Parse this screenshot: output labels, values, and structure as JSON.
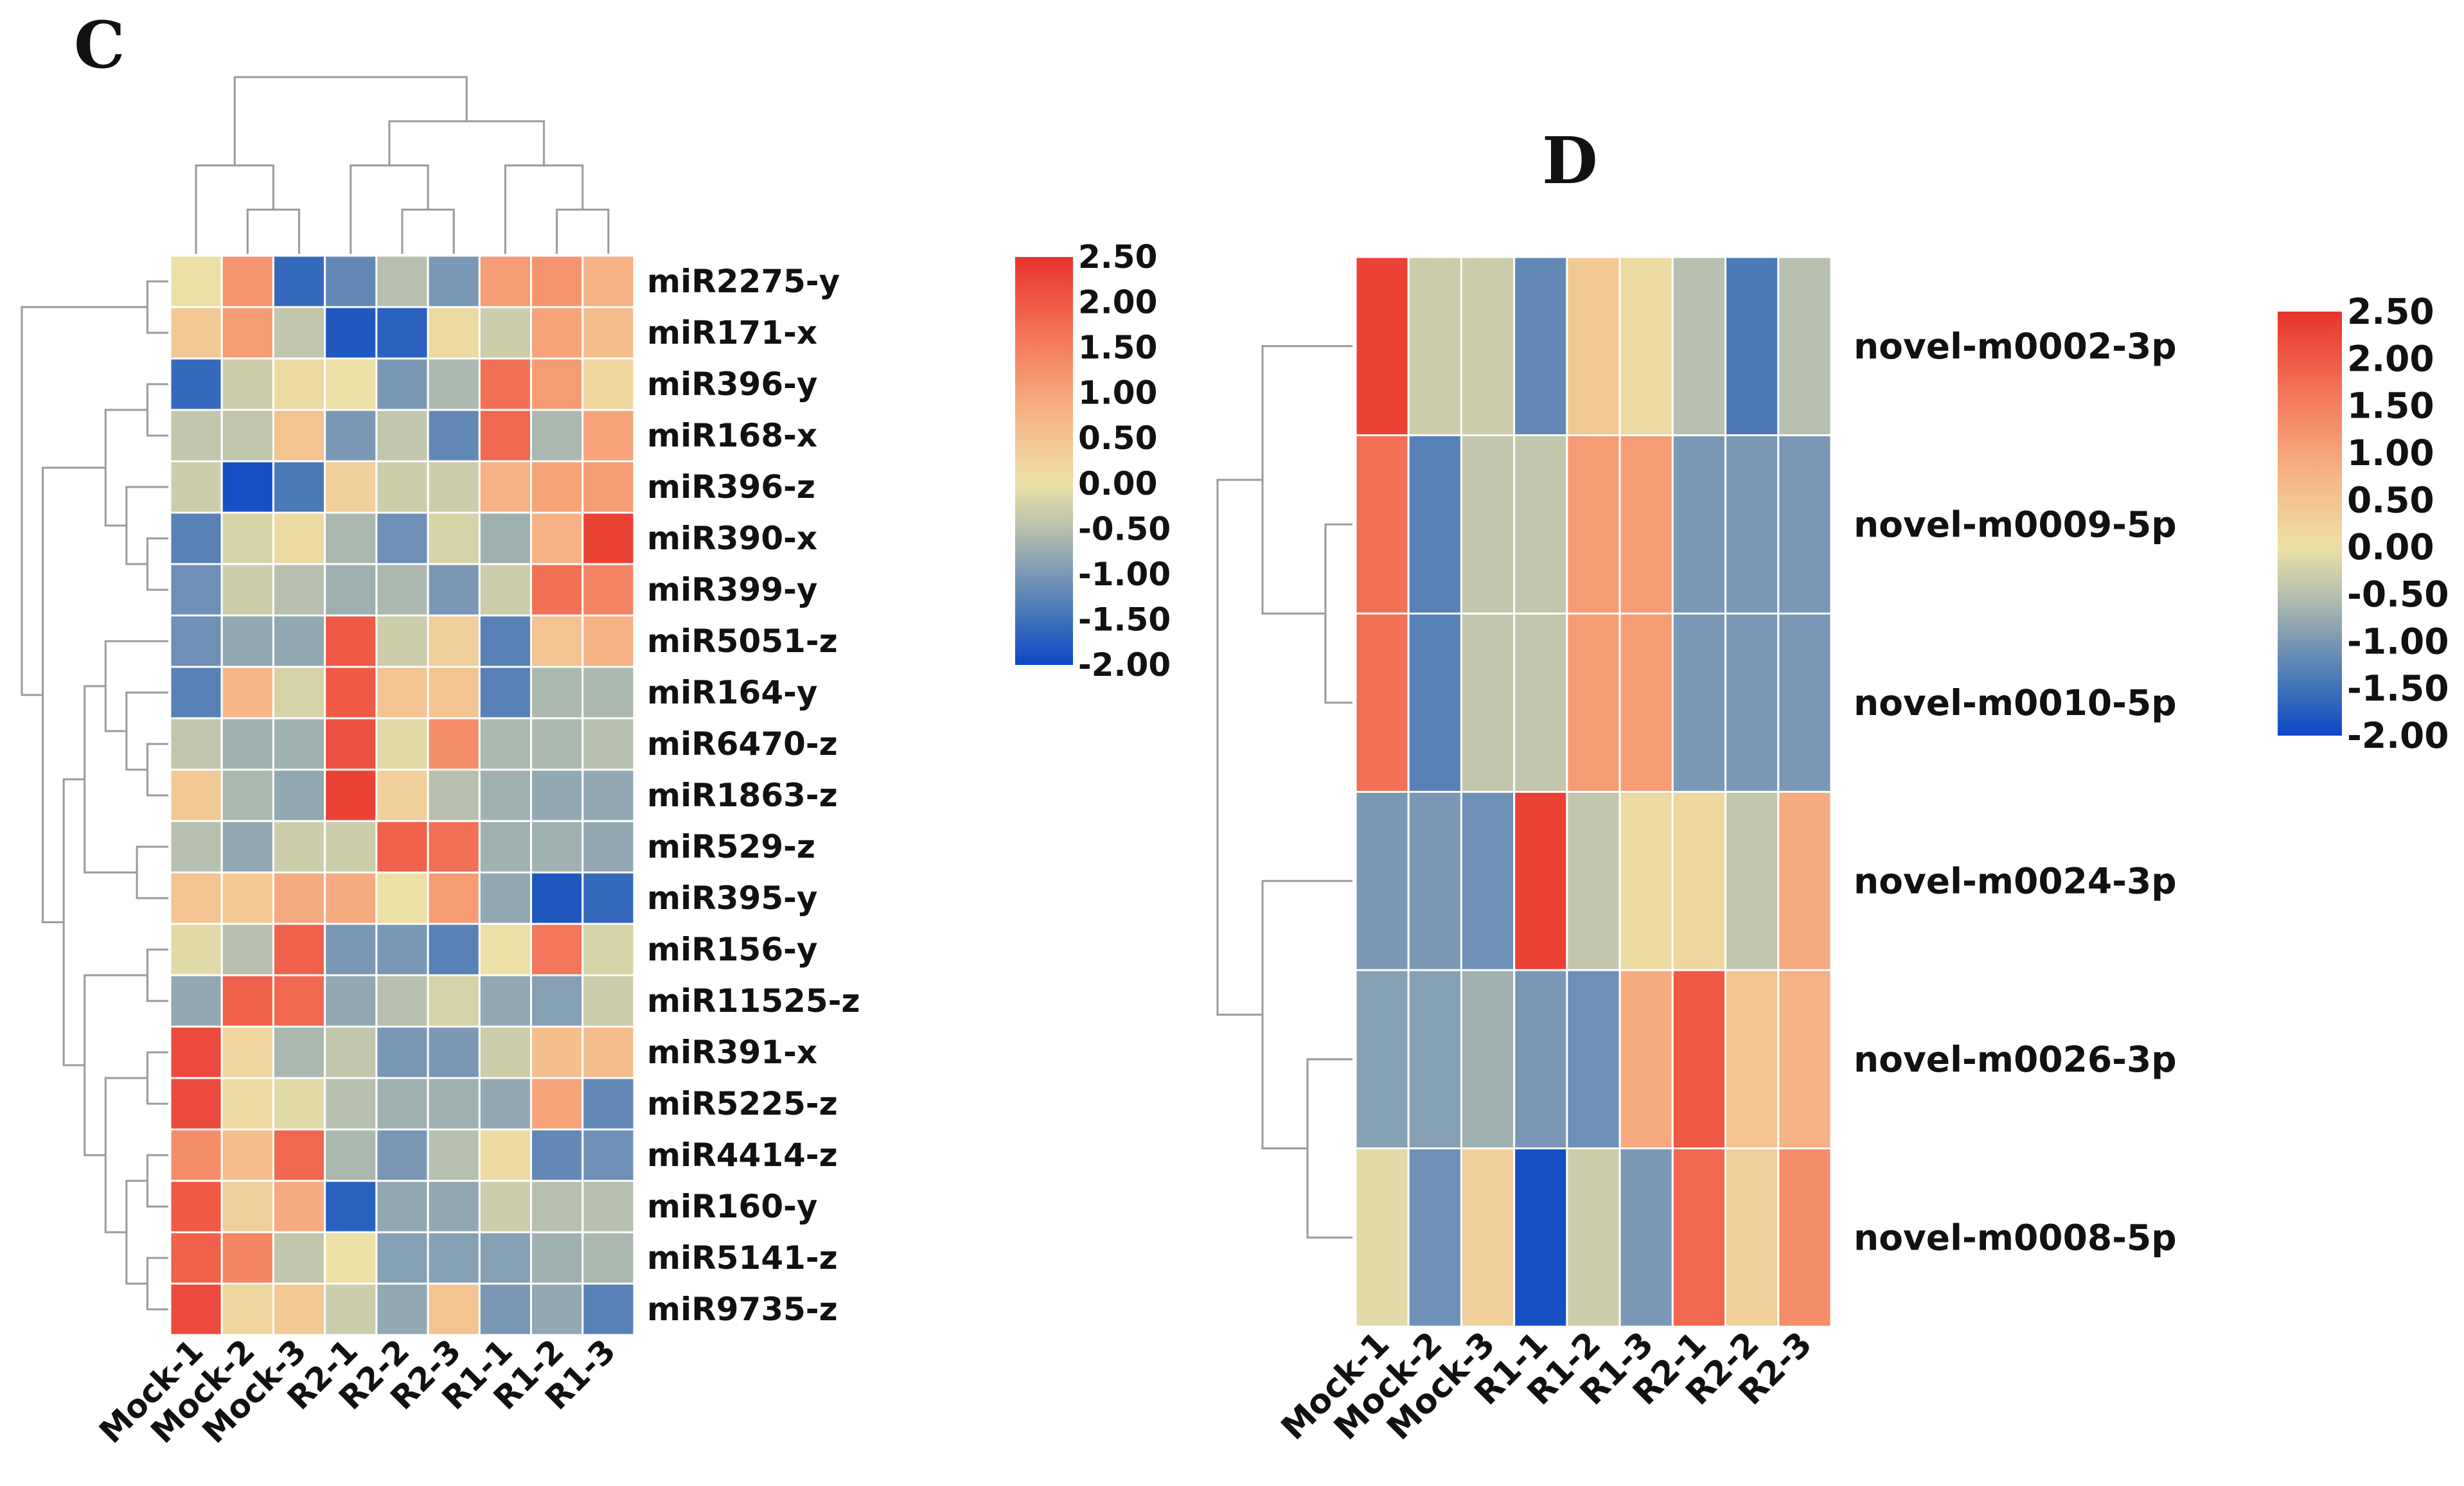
{
  "chart_data": [
    {
      "panel": "C",
      "type": "heatmap",
      "columns": [
        "Mock-1",
        "Mock-2",
        "Mock-3",
        "R2-1",
        "R2-2",
        "R2-3",
        "R1-1",
        "R1-2",
        "R1-3"
      ],
      "rows": [
        "miR2275-y",
        "miR171-x",
        "miR396-y",
        "miR168-x",
        "miR396-z",
        "miR390-x",
        "miR399-y",
        "miR5051-z",
        "miR164-y",
        "miR6470-z",
        "miR1863-z",
        "miR529-z",
        "miR395-y",
        "miR156-y",
        "miR11525-z",
        "miR391-x",
        "miR5225-z",
        "miR4414-z",
        "miR160-y",
        "miR5141-z",
        "miR9735-z"
      ],
      "values": [
        [
          0.0,
          1.2,
          -1.6,
          -1.2,
          -0.5,
          -1.0,
          1.1,
          1.2,
          0.8
        ],
        [
          0.4,
          1.1,
          -0.4,
          -1.8,
          -1.7,
          0.1,
          -0.3,
          1.0,
          0.6
        ],
        [
          -1.6,
          -0.3,
          0.1,
          0.0,
          -1.0,
          -0.6,
          1.7,
          1.1,
          0.2
        ],
        [
          -0.4,
          -0.4,
          0.5,
          -1.0,
          -0.4,
          -1.2,
          1.8,
          -0.6,
          1.0
        ],
        [
          -0.3,
          -1.9,
          -1.4,
          0.3,
          -0.3,
          -0.3,
          0.8,
          1.0,
          1.1
        ],
        [
          -1.3,
          -0.2,
          0.1,
          -0.6,
          -1.1,
          -0.2,
          -0.7,
          0.8,
          2.3
        ],
        [
          -1.1,
          -0.3,
          -0.5,
          -0.7,
          -0.6,
          -1.0,
          -0.3,
          1.7,
          1.4
        ],
        [
          -1.1,
          -0.8,
          -0.8,
          2.0,
          -0.3,
          0.3,
          -1.3,
          0.5,
          0.8
        ],
        [
          -1.3,
          0.7,
          -0.2,
          2.0,
          0.5,
          0.5,
          -1.3,
          -0.6,
          -0.6
        ],
        [
          -0.4,
          -0.7,
          -0.7,
          2.1,
          -0.1,
          1.3,
          -0.6,
          -0.6,
          -0.5
        ],
        [
          0.4,
          -0.6,
          -0.8,
          2.3,
          0.3,
          -0.5,
          -0.7,
          -0.8,
          -0.8
        ],
        [
          -0.5,
          -0.8,
          -0.3,
          -0.3,
          1.9,
          1.7,
          -0.7,
          -0.7,
          -0.8
        ],
        [
          0.5,
          0.4,
          0.9,
          0.9,
          0.0,
          1.1,
          -0.8,
          -1.8,
          -1.6
        ],
        [
          -0.1,
          -0.5,
          1.9,
          -1.0,
          -1.0,
          -1.3,
          0.0,
          1.6,
          -0.2
        ],
        [
          -0.8,
          1.9,
          1.8,
          -0.8,
          -0.5,
          -0.2,
          -0.8,
          -0.9,
          -0.3
        ],
        [
          2.2,
          0.2,
          -0.6,
          -0.4,
          -1.0,
          -1.0,
          -0.3,
          0.6,
          0.6
        ],
        [
          2.2,
          0.1,
          -0.1,
          -0.5,
          -0.7,
          -0.7,
          -0.8,
          1.0,
          -1.2
        ],
        [
          1.3,
          0.6,
          1.8,
          -0.6,
          -1.0,
          -0.5,
          0.1,
          -1.2,
          -1.1
        ],
        [
          2.0,
          0.3,
          0.9,
          -1.7,
          -0.8,
          -0.8,
          -0.3,
          -0.5,
          -0.5
        ],
        [
          1.9,
          1.4,
          -0.4,
          0.0,
          -0.9,
          -0.9,
          -0.9,
          -0.7,
          -0.6
        ],
        [
          2.2,
          0.2,
          0.4,
          -0.3,
          -0.8,
          0.5,
          -1.0,
          -0.8,
          -1.3
        ]
      ],
      "colorbar": {
        "ticks": [
          "2.50",
          "2.00",
          "1.50",
          "1.00",
          "0.50",
          "0.00",
          "-0.50",
          "-1.00",
          "-1.50",
          "-2.00"
        ],
        "range": [
          -2.0,
          2.5
        ]
      },
      "row_dendrogram": true,
      "column_dendrogram": true
    },
    {
      "panel": "D",
      "type": "heatmap",
      "columns": [
        "Mock-1",
        "Mock-2",
        "Mock-3",
        "R1-1",
        "R1-2",
        "R1-3",
        "R2-1",
        "R2-2",
        "R2-3"
      ],
      "rows": [
        "novel-m0002-3p",
        "novel-m0009-5p",
        "novel-m0010-5p",
        "novel-m0024-3p",
        "novel-m0026-3p",
        "novel-m0008-5p"
      ],
      "values": [
        [
          2.3,
          -0.3,
          -0.3,
          -1.2,
          0.4,
          0.1,
          -0.5,
          -1.4,
          -0.5
        ],
        [
          1.7,
          -1.3,
          -0.4,
          -0.4,
          1.1,
          1.1,
          -1.0,
          -1.0,
          -1.0
        ],
        [
          1.7,
          -1.3,
          -0.4,
          -0.4,
          1.1,
          1.1,
          -1.0,
          -1.0,
          -1.0
        ],
        [
          -1.0,
          -1.0,
          -1.1,
          2.3,
          -0.4,
          0.1,
          0.2,
          -0.4,
          0.9
        ],
        [
          -0.9,
          -0.9,
          -0.7,
          -1.0,
          -1.1,
          0.9,
          2.0,
          0.5,
          0.8
        ],
        [
          -0.1,
          -1.1,
          0.3,
          -1.9,
          -0.3,
          -1.0,
          1.8,
          0.3,
          1.3
        ]
      ],
      "colorbar": {
        "ticks": [
          "2.50",
          "2.00",
          "1.50",
          "1.00",
          "0.50",
          "0.00",
          "-0.50",
          "-1.00",
          "-1.50",
          "-2.00"
        ],
        "range": [
          -2.0,
          2.5
        ]
      },
      "row_dendrogram": true,
      "column_dendrogram": false
    }
  ],
  "colors": {
    "stops": [
      "#0d47c6",
      "#3f72b8",
      "#7a98b5",
      "#b7c0ae",
      "#ece0a6",
      "#f6b889",
      "#f57f60",
      "#e8332c"
    ],
    "stop_values": [
      -2.0,
      -1.5,
      -1.0,
      -0.5,
      0.0,
      0.7,
      1.5,
      2.5
    ],
    "dendrogram": "#9a9a9a",
    "cell_border": "#ffffff"
  }
}
